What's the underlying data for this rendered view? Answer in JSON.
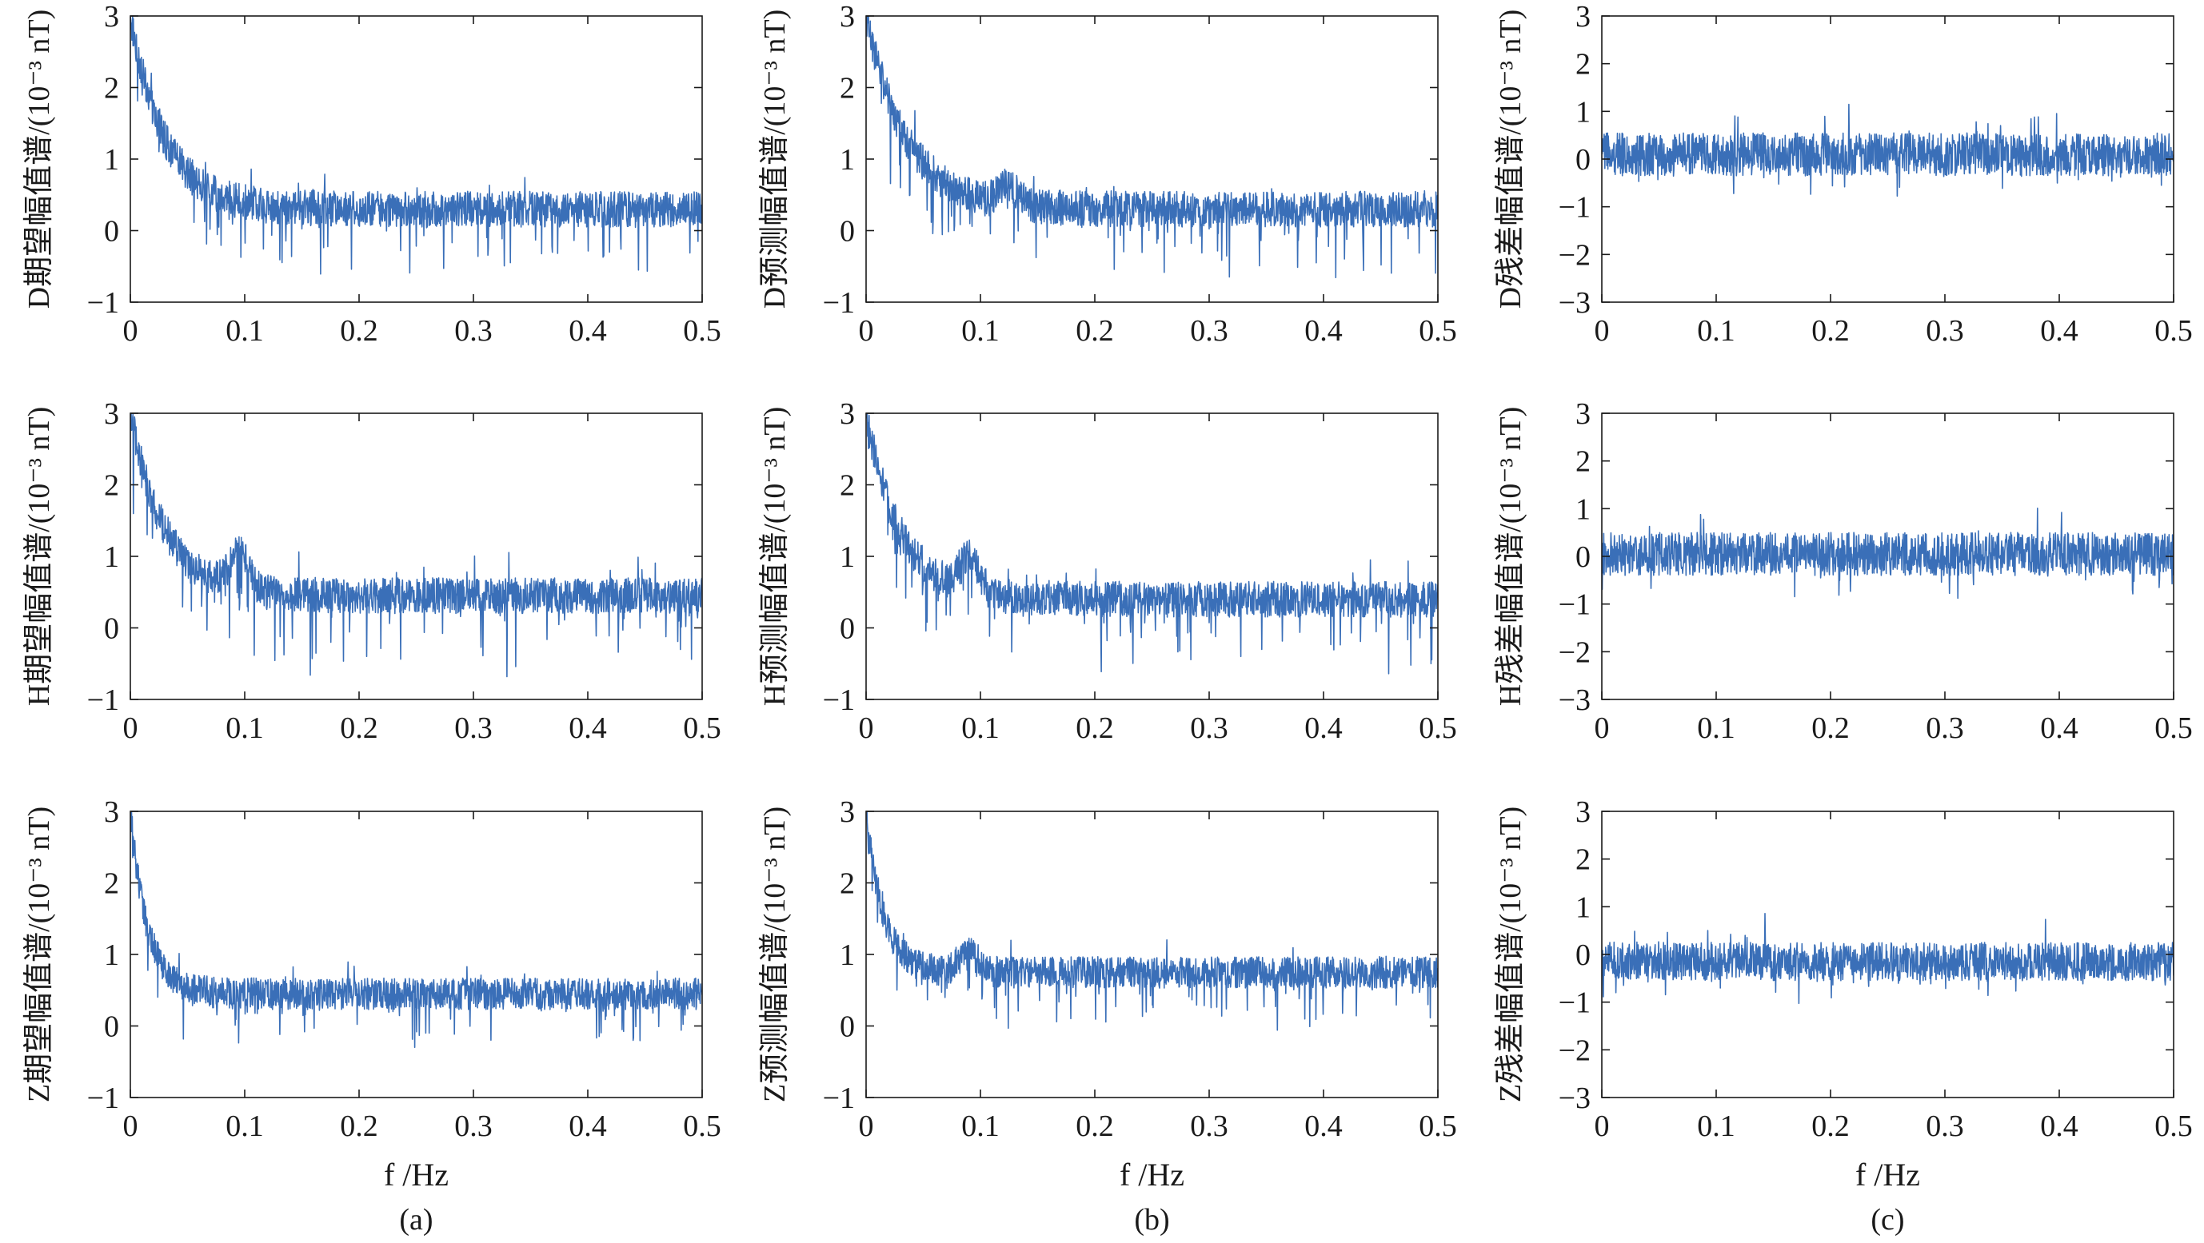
{
  "figure": {
    "color": "#3a6fb8",
    "columns": [
      {
        "panel_label": "(a)",
        "xlabel": "f /Hz"
      },
      {
        "panel_label": "(b)",
        "xlabel": "f /Hz"
      },
      {
        "panel_label": "(c)",
        "xlabel": "f /Hz"
      }
    ]
  },
  "chart_data": [
    {
      "id": "D-expected",
      "type": "line",
      "ylabel": "D期望幅值谱/(10⁻³ nT)",
      "xlim": [
        0,
        0.5
      ],
      "ylim": [
        -1,
        3
      ],
      "xticks": [
        "0",
        "0.1",
        "0.2",
        "0.3",
        "0.4",
        "0.5"
      ],
      "yticks": [
        "−1",
        "0",
        "1",
        "2",
        "3"
      ],
      "shape": {
        "start": 3.0,
        "plateau": 0.3,
        "decay_hz": 0.03,
        "bump_hz": 0.0,
        "bump_height": 0.0,
        "noise": 0.25,
        "neg_spike": 0.8
      }
    },
    {
      "id": "D-predicted",
      "type": "line",
      "ylabel": "D预测幅值谱/(10⁻³ nT)",
      "xlim": [
        0,
        0.5
      ],
      "ylim": [
        -1,
        3
      ],
      "xticks": [
        "0",
        "0.1",
        "0.2",
        "0.3",
        "0.4",
        "0.5"
      ],
      "yticks": [
        "−1",
        "0",
        "1",
        "2",
        "3"
      ],
      "shape": {
        "start": 3.0,
        "plateau": 0.3,
        "decay_hz": 0.035,
        "bump_hz": 0.125,
        "bump_height": 0.25,
        "noise": 0.25,
        "neg_spike": 0.9
      }
    },
    {
      "id": "D-residual",
      "type": "line",
      "ylabel": "D残差幅值谱/(10⁻³ nT)",
      "xlim": [
        0,
        0.5
      ],
      "ylim": [
        -3,
        3
      ],
      "xticks": [
        "0",
        "0.1",
        "0.2",
        "0.3",
        "0.4",
        "0.5"
      ],
      "yticks": [
        "−3",
        "−2",
        "−1",
        "0",
        "1",
        "2",
        "3"
      ],
      "shape": {
        "start": 0.1,
        "plateau": 0.1,
        "decay_hz": 0.05,
        "bump_hz": 0.0,
        "bump_height": 0.0,
        "noise": 0.45,
        "neg_spike": 0.5
      }
    },
    {
      "id": "H-expected",
      "type": "line",
      "ylabel": "H期望幅值谱/(10⁻³ nT)",
      "xlim": [
        0,
        0.5
      ],
      "ylim": [
        -1,
        3
      ],
      "xticks": [
        "0",
        "0.1",
        "0.2",
        "0.3",
        "0.4",
        "0.5"
      ],
      "yticks": [
        "−1",
        "0",
        "1",
        "2",
        "3"
      ],
      "shape": {
        "start": 3.0,
        "plateau": 0.45,
        "decay_hz": 0.03,
        "bump_hz": 0.095,
        "bump_height": 0.5,
        "noise": 0.25,
        "neg_spike": 1.0
      }
    },
    {
      "id": "H-predicted",
      "type": "line",
      "ylabel": "H预测幅值谱/(10⁻³ nT)",
      "xlim": [
        0,
        0.5
      ],
      "ylim": [
        -1,
        3
      ],
      "xticks": [
        "0",
        "0.1",
        "0.2",
        "0.3",
        "0.4",
        "0.5"
      ],
      "yticks": [
        "−1",
        "0",
        "1",
        "2",
        "3"
      ],
      "shape": {
        "start": 3.0,
        "plateau": 0.4,
        "decay_hz": 0.03,
        "bump_hz": 0.09,
        "bump_height": 0.45,
        "noise": 0.25,
        "neg_spike": 0.9
      }
    },
    {
      "id": "H-residual",
      "type": "line",
      "ylabel": "H残差幅值谱/(10⁻³ nT)",
      "xlim": [
        0,
        0.5
      ],
      "ylim": [
        -3,
        3
      ],
      "xticks": [
        "0",
        "0.1",
        "0.2",
        "0.3",
        "0.4",
        "0.5"
      ],
      "yticks": [
        "−3",
        "−2",
        "−1",
        "0",
        "1",
        "2",
        "3"
      ],
      "shape": {
        "start": 0.05,
        "plateau": 0.05,
        "decay_hz": 0.05,
        "bump_hz": 0.0,
        "bump_height": 0.0,
        "noise": 0.45,
        "neg_spike": 0.6
      }
    },
    {
      "id": "Z-expected",
      "type": "line",
      "ylabel": "Z期望幅值谱/(10⁻³ nT)",
      "xlim": [
        0,
        0.5
      ],
      "ylim": [
        -1,
        3
      ],
      "xticks": [
        "0",
        "0.1",
        "0.2",
        "0.3",
        "0.4",
        "0.5"
      ],
      "yticks": [
        "−1",
        "0",
        "1",
        "2",
        "3"
      ],
      "shape": {
        "start": 3.0,
        "plateau": 0.45,
        "decay_hz": 0.015,
        "bump_hz": 0.0,
        "bump_height": 0.0,
        "noise": 0.22,
        "neg_spike": 0.7
      }
    },
    {
      "id": "Z-predicted",
      "type": "line",
      "ylabel": "Z预测幅值谱/(10⁻³ nT)",
      "xlim": [
        0,
        0.5
      ],
      "ylim": [
        -1,
        3
      ],
      "xticks": [
        "0",
        "0.1",
        "0.2",
        "0.3",
        "0.4",
        "0.5"
      ],
      "yticks": [
        "−1",
        "0",
        "1",
        "2",
        "3"
      ],
      "shape": {
        "start": 3.0,
        "plateau": 0.75,
        "decay_hz": 0.015,
        "bump_hz": 0.09,
        "bump_height": 0.3,
        "noise": 0.22,
        "neg_spike": 0.6
      }
    },
    {
      "id": "Z-residual",
      "type": "line",
      "ylabel": "Z残差幅值谱/(10⁻³ nT)",
      "xlim": [
        0,
        0.5
      ],
      "ylim": [
        -3,
        3
      ],
      "xticks": [
        "0",
        "0.1",
        "0.2",
        "0.3",
        "0.4",
        "0.5"
      ],
      "yticks": [
        "−3",
        "−2",
        "−1",
        "0",
        "1",
        "2",
        "3"
      ],
      "shape": {
        "start": -0.1,
        "plateau": -0.15,
        "decay_hz": 0.05,
        "bump_hz": 0.0,
        "bump_height": 0.0,
        "noise": 0.4,
        "neg_spike": 0.5
      }
    }
  ]
}
